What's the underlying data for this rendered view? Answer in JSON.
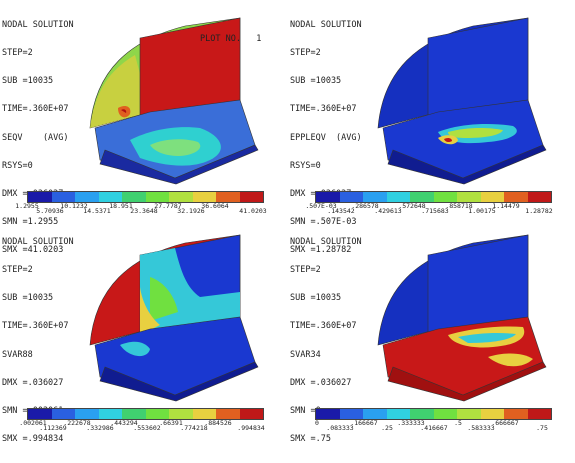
{
  "colors": {
    "bands": [
      "#0000ff",
      "#0055ff",
      "#00aaff",
      "#00ffff",
      "#00ff55",
      "#55ff00",
      "#aaff00",
      "#ffff00",
      "#ff5500",
      "#ff0000"
    ],
    "legend_bands": [
      "#1a1aa8",
      "#2a60e0",
      "#2aa0f0",
      "#30d0e0",
      "#40d070",
      "#70e040",
      "#b0e040",
      "#e8d040",
      "#e06020",
      "#c01818"
    ]
  },
  "panels": [
    {
      "title": "NODAL SOLUTION",
      "lines": [
        "STEP=2",
        "SUB =10035",
        "TIME=.360E+07",
        "SEQV    (AVG)",
        "RSYS=0",
        "DMX =.036027",
        "SMN =1.2955",
        "SMX =41.0203"
      ],
      "plot_no": "PLOT NO.   1",
      "legend_top": [
        "1.2955",
        "10.1232",
        "18.951",
        "27.7787",
        "36.6064"
      ],
      "legend_bottom": [
        "5.70936",
        "14.5371",
        "23.3648",
        "32.1926",
        "41.0203"
      ]
    },
    {
      "title": "NODAL SOLUTION",
      "lines": [
        "STEP=2",
        "SUB =10035",
        "TIME=.360E+07",
        "EPPLEQV  (AVG)",
        "RSYS=0",
        "DMX =.036027",
        "SMN =.507E-03",
        "SMX =1.28782"
      ],
      "plot_no": "",
      "legend_top": [
        ".507E-03",
        ".286578",
        ".572648",
        ".858718",
        "1.14479"
      ],
      "legend_bottom": [
        ".143542",
        ".429613",
        ".715683",
        "1.00175",
        "1.28782"
      ]
    },
    {
      "title": "NODAL SOLUTION",
      "lines": [
        "STEP=2",
        "SUB =10035",
        "TIME=.360E+07",
        "SVAR88",
        "DMX =.036027",
        "SMN =.002061",
        "SMX =.994834"
      ],
      "plot_no": "",
      "legend_top": [
        ".002061",
        ".222678",
        ".443294",
        ".66391",
        ".884526"
      ],
      "legend_bottom": [
        ".112369",
        ".332986",
        ".553602",
        ".774218",
        ".994834"
      ]
    },
    {
      "title": "NODAL SOLUTION",
      "lines": [
        "STEP=2",
        "SUB =10035",
        "TIME=.360E+07",
        "SVAR34",
        "DMX =.036027",
        "SMN =0",
        "SMX =.75"
      ],
      "plot_no": "",
      "legend_top": [
        "0",
        ".166667",
        ".333333",
        ".5",
        ".666667"
      ],
      "legend_bottom": [
        ".083333",
        ".25",
        ".416667",
        ".583333",
        ".75"
      ]
    }
  ]
}
